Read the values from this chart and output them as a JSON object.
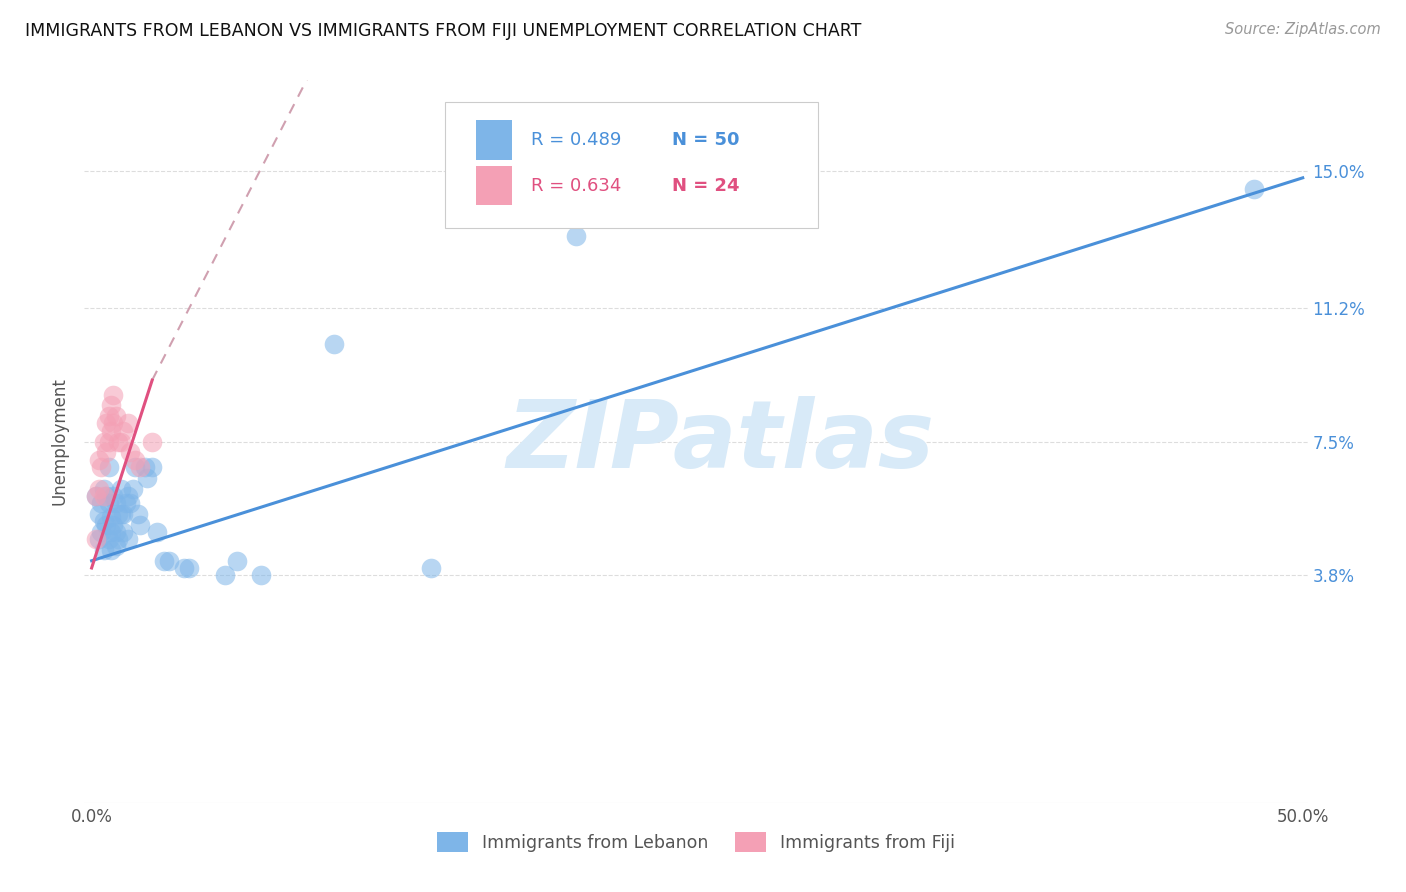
{
  "title": "IMMIGRANTS FROM LEBANON VS IMMIGRANTS FROM FIJI UNEMPLOYMENT CORRELATION CHART",
  "source": "Source: ZipAtlas.com",
  "ylabel": "Unemployment",
  "ytick_values": [
    0.038,
    0.075,
    0.112,
    0.15
  ],
  "ytick_labels": [
    "3.8%",
    "7.5%",
    "11.2%",
    "15.0%"
  ],
  "xlim": [
    -0.003,
    0.502
  ],
  "ylim": [
    -0.025,
    0.175
  ],
  "label1": "Immigrants from Lebanon",
  "label2": "Immigrants from Fiji",
  "color1": "#7eb5e8",
  "color2": "#f4a0b5",
  "trendline1_color": "#4a90d9",
  "trendline2_color": "#e05080",
  "trendline2_dashed_color": "#d0a0b0",
  "watermark_text": "ZIPatlas",
  "watermark_color": "#d8eaf8",
  "background_color": "#ffffff",
  "grid_color": "#dddddd",
  "title_color": "#111111",
  "source_color": "#999999",
  "ylabel_color": "#555555",
  "ytick_color": "#4a90d9",
  "xtick_color": "#555555",
  "legend_border_color": "#cccccc",
  "r1_color": "#4a90d9",
  "r2_color": "#e05080",
  "lebanon_x": [
    0.002,
    0.003,
    0.003,
    0.004,
    0.004,
    0.005,
    0.005,
    0.005,
    0.006,
    0.006,
    0.007,
    0.007,
    0.007,
    0.008,
    0.008,
    0.008,
    0.009,
    0.009,
    0.01,
    0.01,
    0.01,
    0.011,
    0.011,
    0.012,
    0.012,
    0.013,
    0.013,
    0.014,
    0.015,
    0.015,
    0.016,
    0.017,
    0.018,
    0.019,
    0.02,
    0.022,
    0.023,
    0.025,
    0.027,
    0.03,
    0.032,
    0.038,
    0.04,
    0.055,
    0.06,
    0.07,
    0.1,
    0.14,
    0.2,
    0.48
  ],
  "lebanon_y": [
    0.06,
    0.055,
    0.048,
    0.058,
    0.05,
    0.062,
    0.053,
    0.045,
    0.06,
    0.052,
    0.058,
    0.048,
    0.068,
    0.054,
    0.05,
    0.045,
    0.06,
    0.052,
    0.058,
    0.05,
    0.046,
    0.055,
    0.048,
    0.062,
    0.055,
    0.055,
    0.05,
    0.058,
    0.06,
    0.048,
    0.058,
    0.062,
    0.068,
    0.055,
    0.052,
    0.068,
    0.065,
    0.068,
    0.05,
    0.042,
    0.042,
    0.04,
    0.04,
    0.038,
    0.042,
    0.038,
    0.102,
    0.04,
    0.132,
    0.145
  ],
  "fiji_x": [
    0.002,
    0.002,
    0.003,
    0.003,
    0.004,
    0.005,
    0.005,
    0.006,
    0.006,
    0.007,
    0.007,
    0.008,
    0.008,
    0.009,
    0.009,
    0.01,
    0.011,
    0.012,
    0.013,
    0.015,
    0.016,
    0.018,
    0.02,
    0.025
  ],
  "fiji_y": [
    0.048,
    0.06,
    0.062,
    0.07,
    0.068,
    0.06,
    0.075,
    0.072,
    0.08,
    0.075,
    0.082,
    0.078,
    0.085,
    0.08,
    0.088,
    0.082,
    0.075,
    0.075,
    0.078,
    0.08,
    0.072,
    0.07,
    0.068,
    0.075
  ],
  "leb_trendline": [
    0.0,
    0.5,
    0.042,
    0.148
  ],
  "fij_trendline_solid": [
    0.0,
    0.025,
    0.04,
    0.092
  ],
  "fij_trendline_dash": [
    0.025,
    0.2,
    0.092,
    0.32
  ]
}
